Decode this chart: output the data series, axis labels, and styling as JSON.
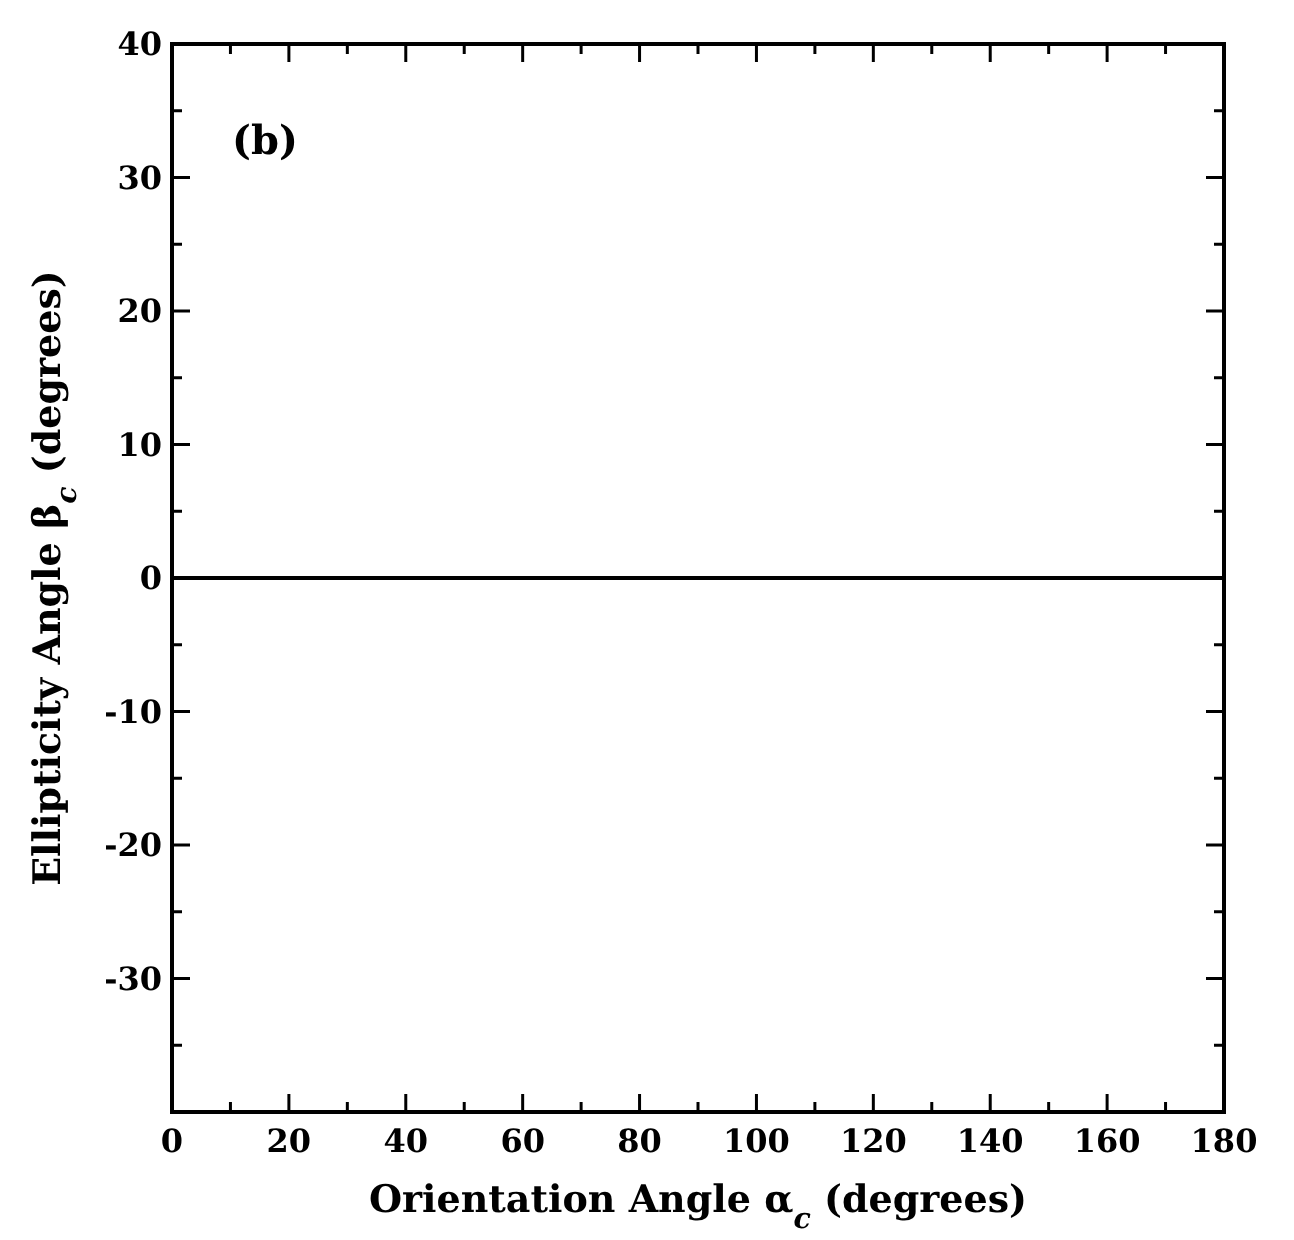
{
  "chart_data": {
    "type": "line",
    "xlabel": "Orientation Angle α$_{c}$ (degrees)",
    "ylabel": "Ellipticity Angle β$_{c}$ (degrees)",
    "annotations": [
      "(b)"
    ],
    "series": [
      {
        "color": "#000000",
        "x": [
          0,
          180
        ],
        "values": [
          0,
          0
        ]
      }
    ],
    "xlim": [
      0,
      180
    ],
    "ylim": [
      -40,
      40
    ],
    "xticks": [
      0,
      {
        "value": 10,
        "label": null
      },
      20,
      {
        "value": 30,
        "label": null
      },
      40,
      {
        "value": 50,
        "label": null
      },
      60,
      {
        "value": 70,
        "label": null
      },
      80,
      {
        "value": 90,
        "label": null
      },
      100,
      {
        "value": 110,
        "label": null
      },
      120,
      {
        "value": 130,
        "label": null
      },
      140,
      {
        "value": 150,
        "label": null
      },
      160,
      {
        "value": 170,
        "label": null
      },
      180
    ],
    "yticks": [
      {
        "value": -35,
        "label": null
      },
      -30,
      {
        "value": -25,
        "label": null
      },
      -20,
      {
        "value": -15,
        "label": null
      },
      -10,
      {
        "value": -5,
        "label": null
      },
      0,
      {
        "value": 5,
        "label": null
      },
      10,
      {
        "value": 15,
        "label": null
      },
      20,
      {
        "value": 25,
        "label": null
      },
      30,
      {
        "value": 35,
        "label": null
      },
      40
    ],
    "grid": false,
    "marker": "none",
    "line_style": "solid"
  }
}
